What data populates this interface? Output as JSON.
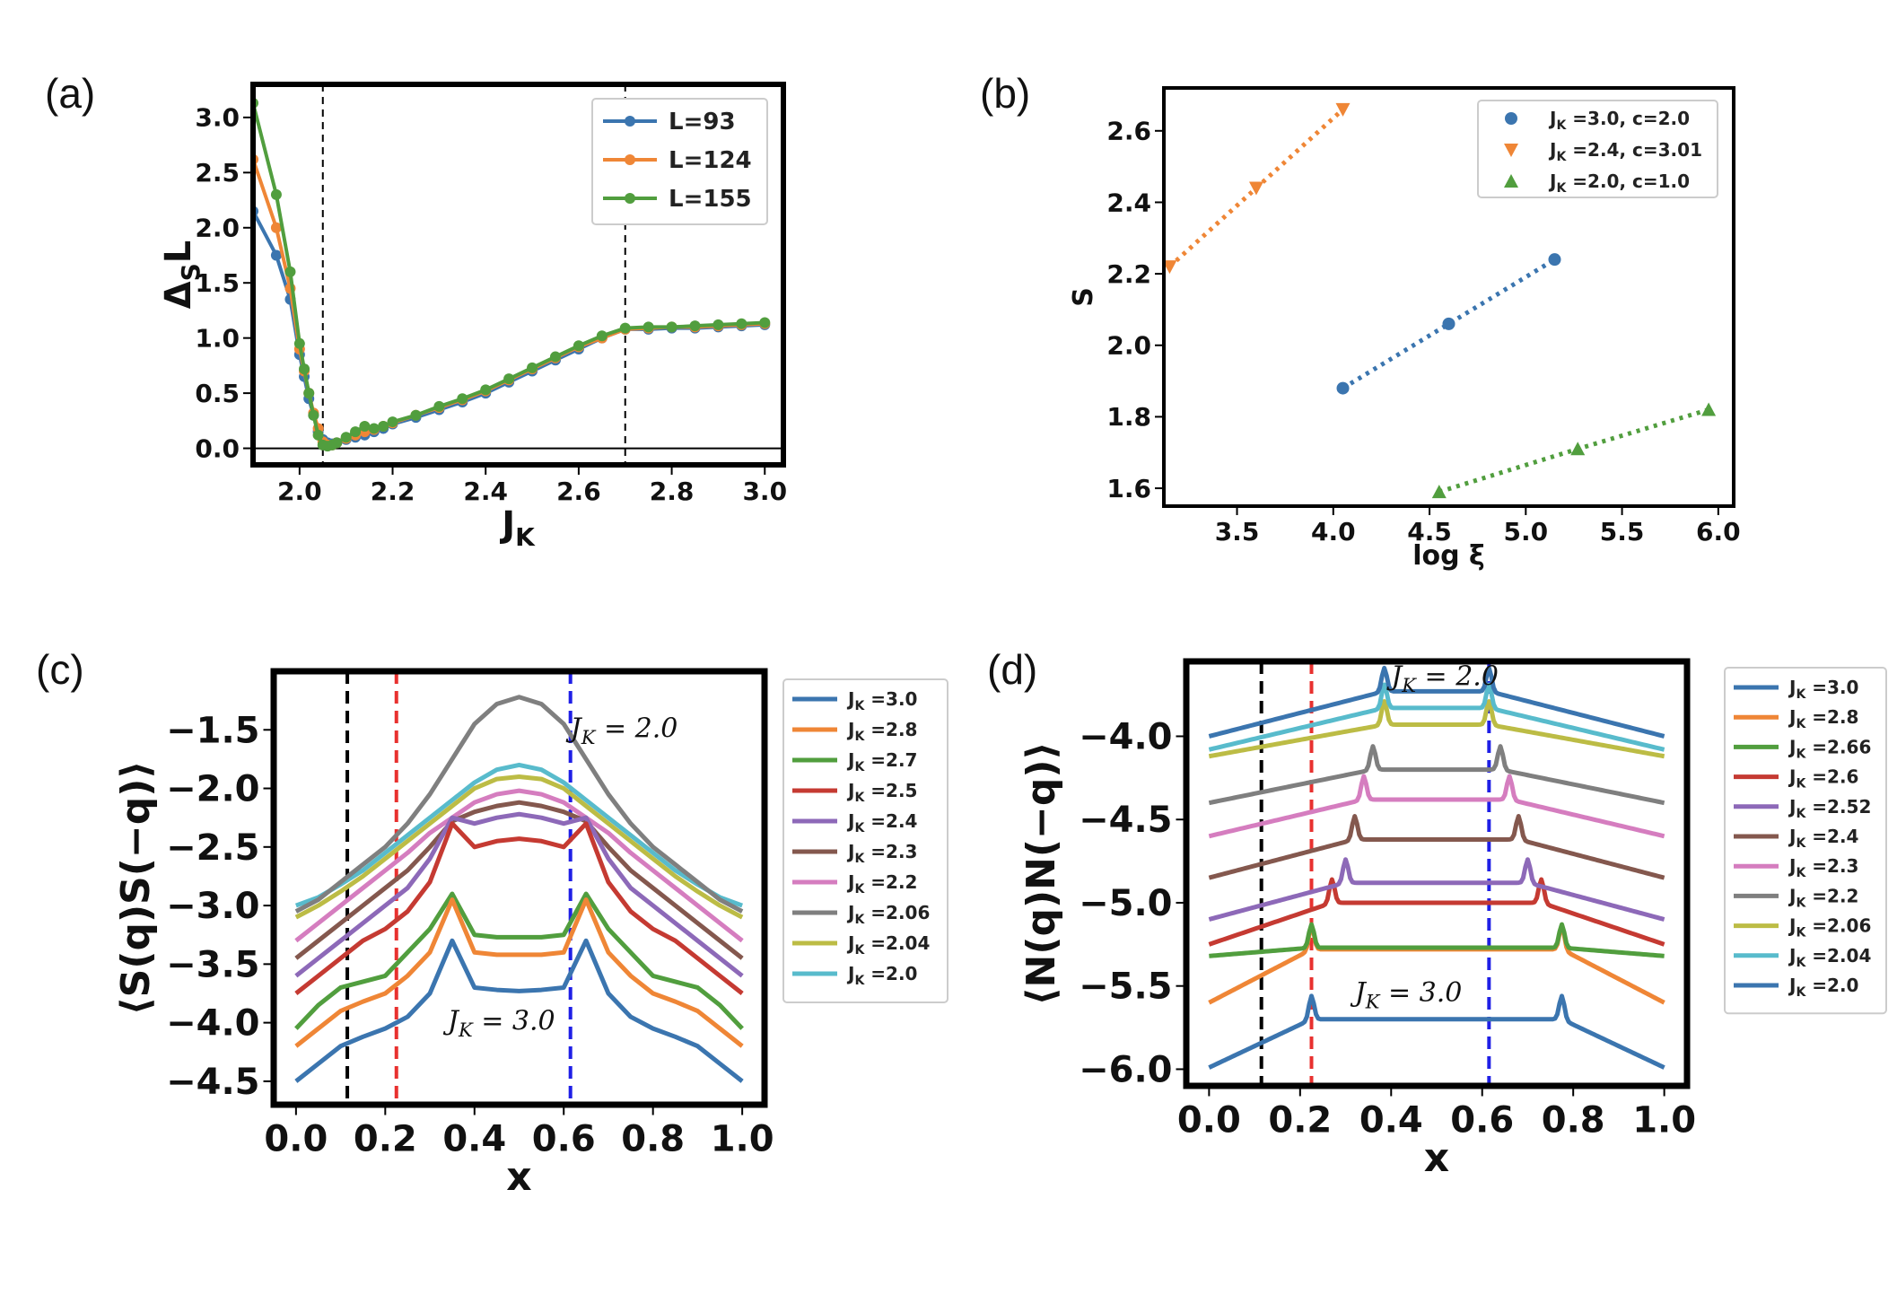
{
  "colors": {
    "blue": "#3b75af",
    "orange": "#ef8636",
    "green": "#519e3e",
    "red": "#c53a32",
    "purple": "#8d69b8",
    "brown": "#84584e",
    "pink": "#d57dbf",
    "gray": "#7f7f7f",
    "olive": "#bcbc45",
    "cyan": "#58bbcc",
    "vline_black": "#000000",
    "vline_red": "#e8312f",
    "vline_blue": "#1f1fe6"
  },
  "chart_data": [
    {
      "id": "a",
      "panel_label": "(a)",
      "type": "line",
      "xlabel": "J",
      "xlabel_sub": "K",
      "ylabel": "Δ",
      "ylabel_sub": "S",
      "ylabel_tail": "L",
      "xlim": [
        1.9,
        3.04
      ],
      "ylim": [
        -0.15,
        3.3
      ],
      "xticks": [
        2.0,
        2.2,
        2.4,
        2.6,
        2.8,
        3.0
      ],
      "xtick_labels": [
        "2.0",
        "2.2",
        "2.4",
        "2.6",
        "2.8",
        "3.0"
      ],
      "yticks": [
        0.0,
        0.5,
        1.0,
        1.5,
        2.0,
        2.5,
        3.0
      ],
      "ytick_labels": [
        "0.0",
        "0.5",
        "1.0",
        "1.5",
        "2.0",
        "2.5",
        "3.0"
      ],
      "vlines": [
        2.05,
        2.7
      ],
      "hline": 0.0,
      "legend_position": "top-right",
      "series": [
        {
          "name": "L=93",
          "color": "blue",
          "x": [
            1.9,
            1.95,
            1.98,
            2.0,
            2.01,
            2.02,
            2.03,
            2.04,
            2.05,
            2.06,
            2.07,
            2.08,
            2.1,
            2.12,
            2.14,
            2.16,
            2.18,
            2.2,
            2.25,
            2.3,
            2.35,
            2.4,
            2.45,
            2.5,
            2.55,
            2.6,
            2.65,
            2.7,
            2.75,
            2.8,
            2.85,
            2.9,
            2.95,
            3.0
          ],
          "y": [
            2.15,
            1.75,
            1.35,
            0.85,
            0.65,
            0.45,
            0.3,
            0.15,
            0.08,
            0.05,
            0.04,
            0.05,
            0.08,
            0.1,
            0.12,
            0.15,
            0.18,
            0.22,
            0.28,
            0.35,
            0.42,
            0.5,
            0.6,
            0.7,
            0.8,
            0.9,
            1.0,
            1.08,
            1.08,
            1.09,
            1.09,
            1.1,
            1.11,
            1.12
          ]
        },
        {
          "name": "L=124",
          "color": "orange",
          "x": [
            1.9,
            1.95,
            1.98,
            2.0,
            2.01,
            2.02,
            2.03,
            2.04,
            2.05,
            2.06,
            2.07,
            2.08,
            2.1,
            2.12,
            2.14,
            2.16,
            2.18,
            2.2,
            2.25,
            2.3,
            2.35,
            2.4,
            2.45,
            2.5,
            2.55,
            2.6,
            2.65,
            2.7,
            2.75,
            2.8,
            2.85,
            2.9,
            2.95,
            3.0
          ],
          "y": [
            2.62,
            2.0,
            1.45,
            0.9,
            0.7,
            0.5,
            0.32,
            0.18,
            0.06,
            0.03,
            0.03,
            0.05,
            0.09,
            0.12,
            0.15,
            0.17,
            0.2,
            0.23,
            0.3,
            0.37,
            0.44,
            0.52,
            0.62,
            0.72,
            0.82,
            0.92,
            1.0,
            1.08,
            1.09,
            1.1,
            1.1,
            1.11,
            1.12,
            1.13
          ]
        },
        {
          "name": "L=155",
          "color": "green",
          "x": [
            1.9,
            1.95,
            1.98,
            2.0,
            2.01,
            2.02,
            2.03,
            2.04,
            2.05,
            2.06,
            2.07,
            2.08,
            2.1,
            2.12,
            2.14,
            2.16,
            2.18,
            2.2,
            2.25,
            2.3,
            2.35,
            2.4,
            2.45,
            2.5,
            2.55,
            2.6,
            2.65,
            2.7,
            2.75,
            2.8,
            2.85,
            2.9,
            2.95,
            3.0
          ],
          "y": [
            3.13,
            2.3,
            1.6,
            0.95,
            0.72,
            0.5,
            0.3,
            0.12,
            0.03,
            0.02,
            0.03,
            0.05,
            0.1,
            0.15,
            0.2,
            0.18,
            0.2,
            0.24,
            0.3,
            0.38,
            0.45,
            0.53,
            0.63,
            0.73,
            0.83,
            0.93,
            1.02,
            1.09,
            1.1,
            1.1,
            1.11,
            1.12,
            1.13,
            1.14
          ]
        }
      ]
    },
    {
      "id": "b",
      "panel_label": "(b)",
      "type": "scatter",
      "xlabel": "log ξ",
      "ylabel": "S",
      "xlim": [
        3.12,
        6.08
      ],
      "ylim": [
        1.55,
        2.72
      ],
      "xticks": [
        3.5,
        4.0,
        4.5,
        5.0,
        5.5,
        6.0
      ],
      "xtick_labels": [
        "3.5",
        "4.0",
        "4.5",
        "5.0",
        "5.5",
        "6.0"
      ],
      "yticks": [
        1.6,
        1.8,
        2.0,
        2.2,
        2.4,
        2.6
      ],
      "ytick_labels": [
        "1.6",
        "1.8",
        "2.0",
        "2.2",
        "2.4",
        "2.6"
      ],
      "legend_position": "top-right",
      "series": [
        {
          "name": "J",
          "name_sub": "K",
          "name_tail": " =3.0, c=2.0",
          "color": "blue",
          "marker": "circle",
          "x": [
            4.05,
            4.6,
            5.15
          ],
          "y": [
            1.88,
            2.06,
            2.24
          ]
        },
        {
          "name": "J",
          "name_sub": "K",
          "name_tail": " =2.4, c=3.01",
          "color": "orange",
          "marker": "triangle-down",
          "x": [
            3.15,
            3.6,
            4.05
          ],
          "y": [
            2.22,
            2.44,
            2.66
          ]
        },
        {
          "name": "J",
          "name_sub": "K",
          "name_tail": " =2.0, c=1.0",
          "color": "green",
          "marker": "triangle-up",
          "x": [
            4.55,
            5.27,
            5.95
          ],
          "y": [
            1.59,
            1.71,
            1.82
          ]
        }
      ]
    },
    {
      "id": "c",
      "panel_label": "(c)",
      "type": "line",
      "xlabel": "x",
      "ylabel": "⟨S(q)S(−q)⟩",
      "xlim": [
        -0.05,
        1.05
      ],
      "ylim": [
        -4.7,
        -1.0
      ],
      "xticks": [
        0.0,
        0.2,
        0.4,
        0.6,
        0.8,
        1.0
      ],
      "xtick_labels": [
        "0.0",
        "0.2",
        "0.4",
        "0.6",
        "0.8",
        "1.0"
      ],
      "yticks": [
        -4.5,
        -4.0,
        -3.5,
        -3.0,
        -2.5,
        -2.0,
        -1.5
      ],
      "ytick_labels": [
        "−4.5",
        "−4.0",
        "−3.5",
        "−3.0",
        "−2.5",
        "−2.0",
        "−1.5"
      ],
      "vlines": [
        {
          "x": 0.115,
          "color": "vline_black"
        },
        {
          "x": 0.225,
          "color": "vline_red"
        },
        {
          "x": 0.615,
          "color": "vline_blue"
        }
      ],
      "annotations": [
        {
          "text": "J",
          "sub": "K",
          "tail": " = 2.0",
          "x": 0.615,
          "y": -1.5
        },
        {
          "text": "J",
          "sub": "K",
          "tail": " = 3.0",
          "x": 0.34,
          "y": -4.0
        }
      ],
      "legend_position": "outside-right",
      "series": [
        {
          "label": "=3.0",
          "color": "blue",
          "y": [
            -4.5,
            -4.35,
            -4.2,
            -4.12,
            -4.05,
            -3.95,
            -3.75,
            -3.3,
            -3.7,
            -3.72,
            -3.73,
            -3.72,
            -3.7,
            -3.3,
            -3.75,
            -3.95,
            -4.05,
            -4.12,
            -4.2,
            -4.35,
            -4.5
          ]
        },
        {
          "label": "=2.8",
          "color": "orange",
          "y": [
            -4.2,
            -4.05,
            -3.9,
            -3.82,
            -3.75,
            -3.6,
            -3.4,
            -2.95,
            -3.4,
            -3.42,
            -3.42,
            -3.42,
            -3.4,
            -2.95,
            -3.4,
            -3.6,
            -3.75,
            -3.82,
            -3.9,
            -4.05,
            -4.2
          ]
        },
        {
          "label": "=2.7",
          "color": "green",
          "y": [
            -4.05,
            -3.85,
            -3.7,
            -3.65,
            -3.6,
            -3.4,
            -3.2,
            -2.9,
            -3.25,
            -3.27,
            -3.27,
            -3.27,
            -3.25,
            -2.9,
            -3.2,
            -3.4,
            -3.6,
            -3.65,
            -3.7,
            -3.85,
            -4.05
          ]
        },
        {
          "label": "=2.5",
          "color": "red",
          "y": [
            -3.75,
            -3.6,
            -3.45,
            -3.3,
            -3.2,
            -3.05,
            -2.8,
            -2.3,
            -2.5,
            -2.45,
            -2.43,
            -2.45,
            -2.5,
            -2.3,
            -2.8,
            -3.05,
            -3.2,
            -3.3,
            -3.45,
            -3.6,
            -3.75
          ]
        },
        {
          "label": "=2.4",
          "color": "purple",
          "y": [
            -3.6,
            -3.45,
            -3.3,
            -3.15,
            -3.0,
            -2.85,
            -2.6,
            -2.25,
            -2.3,
            -2.25,
            -2.22,
            -2.25,
            -2.3,
            -2.25,
            -2.6,
            -2.85,
            -3.0,
            -3.15,
            -3.3,
            -3.45,
            -3.6
          ]
        },
        {
          "label": "=2.3",
          "color": "brown",
          "y": [
            -3.45,
            -3.3,
            -3.15,
            -3.0,
            -2.85,
            -2.7,
            -2.5,
            -2.28,
            -2.2,
            -2.15,
            -2.12,
            -2.15,
            -2.2,
            -2.28,
            -2.5,
            -2.7,
            -2.85,
            -3.0,
            -3.15,
            -3.3,
            -3.45
          ]
        },
        {
          "label": "=2.2",
          "color": "pink",
          "y": [
            -3.3,
            -3.15,
            -3.0,
            -2.85,
            -2.7,
            -2.55,
            -2.38,
            -2.25,
            -2.12,
            -2.05,
            -2.02,
            -2.05,
            -2.12,
            -2.25,
            -2.38,
            -2.55,
            -2.7,
            -2.85,
            -3.0,
            -3.15,
            -3.3
          ]
        },
        {
          "label": "=2.06",
          "color": "gray",
          "y": [
            -3.05,
            -2.95,
            -2.8,
            -2.65,
            -2.5,
            -2.3,
            -2.05,
            -1.75,
            -1.45,
            -1.28,
            -1.22,
            -1.28,
            -1.45,
            -1.75,
            -2.05,
            -2.3,
            -2.5,
            -2.65,
            -2.8,
            -2.95,
            -3.05
          ]
        },
        {
          "label": "=2.04",
          "color": "olive",
          "y": [
            -3.1,
            -3.0,
            -2.88,
            -2.75,
            -2.6,
            -2.45,
            -2.3,
            -2.15,
            -2.0,
            -1.92,
            -1.9,
            -1.92,
            -2.0,
            -2.15,
            -2.3,
            -2.45,
            -2.6,
            -2.75,
            -2.88,
            -3.0,
            -3.1
          ]
        },
        {
          "label": "=2.0",
          "color": "cyan",
          "y": [
            -3.0,
            -2.93,
            -2.82,
            -2.7,
            -2.55,
            -2.4,
            -2.25,
            -2.1,
            -1.95,
            -1.84,
            -1.8,
            -1.84,
            -1.95,
            -2.1,
            -2.25,
            -2.4,
            -2.55,
            -2.7,
            -2.82,
            -2.93,
            -3.0
          ]
        }
      ]
    },
    {
      "id": "d",
      "panel_label": "(d)",
      "type": "line",
      "xlabel": "x",
      "ylabel": "⟨N(q)N(−q)⟩",
      "xlim": [
        -0.05,
        1.05
      ],
      "ylim": [
        -6.1,
        -3.55
      ],
      "xticks": [
        0.0,
        0.2,
        0.4,
        0.6,
        0.8,
        1.0
      ],
      "xtick_labels": [
        "0.0",
        "0.2",
        "0.4",
        "0.6",
        "0.8",
        "1.0"
      ],
      "yticks": [
        -6.0,
        -5.5,
        -5.0,
        -4.5,
        -4.0
      ],
      "ytick_labels": [
        "−6.0",
        "−5.5",
        "−5.0",
        "−4.5",
        "−4.0"
      ],
      "vlines": [
        {
          "x": 0.115,
          "color": "vline_black"
        },
        {
          "x": 0.225,
          "color": "vline_red"
        },
        {
          "x": 0.615,
          "color": "vline_blue"
        }
      ],
      "annotations": [
        {
          "text": "J",
          "sub": "K",
          "tail": " = 2.0",
          "x": 0.4,
          "y": -3.65,
          "color": "vline_red"
        },
        {
          "text": "J",
          "sub": "K",
          "tail": " = 3.0",
          "x": 0.32,
          "y": -5.55
        }
      ],
      "legend_position": "outside-right",
      "series": [
        {
          "label": "=3.0",
          "color": "blue",
          "base": -5.7,
          "edge": -5.99,
          "pk": 0.225
        },
        {
          "label": "=2.8",
          "color": "orange",
          "base": -5.28,
          "edge": -5.6,
          "pk": 0.225
        },
        {
          "label": "=2.66",
          "color": "green",
          "base": -5.27,
          "edge": -5.32,
          "pk": 0.225
        },
        {
          "label": "=2.6",
          "color": "red",
          "base": -5.0,
          "edge": -5.25,
          "pk": 0.27
        },
        {
          "label": "=2.52",
          "color": "purple",
          "base": -4.88,
          "edge": -5.1,
          "pk": 0.3
        },
        {
          "label": "=2.4",
          "color": "brown",
          "base": -4.62,
          "edge": -4.85,
          "pk": 0.32
        },
        {
          "label": "=2.3",
          "color": "pink",
          "base": -4.38,
          "edge": -4.6,
          "pk": 0.34
        },
        {
          "label": "=2.2",
          "color": "gray",
          "base": -4.2,
          "edge": -4.4,
          "pk": 0.36
        },
        {
          "label": "=2.06",
          "color": "olive",
          "base": -3.93,
          "edge": -4.12,
          "pk": 0.385
        },
        {
          "label": "=2.04",
          "color": "cyan",
          "base": -3.83,
          "edge": -4.08,
          "pk": 0.385
        },
        {
          "label": "=2.0",
          "color": "blue",
          "base": -3.73,
          "edge": -4.0,
          "pk": 0.385
        }
      ]
    }
  ]
}
